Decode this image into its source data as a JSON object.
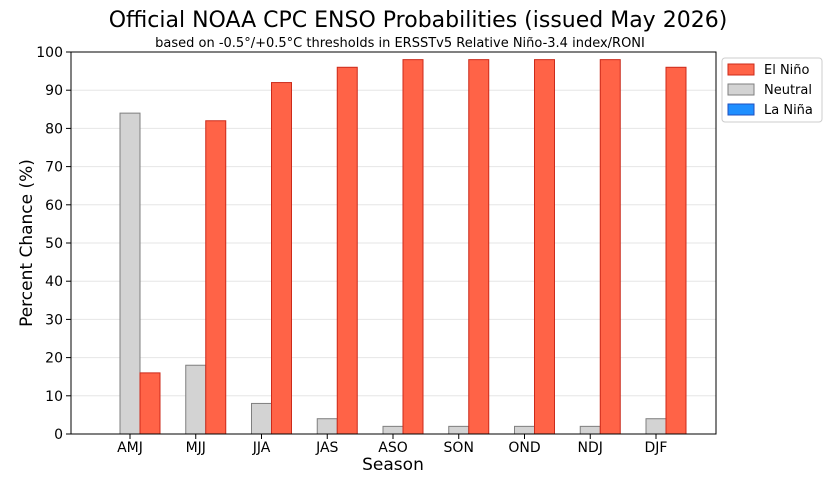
{
  "chart_data": {
    "type": "bar",
    "title": "Official NOAA CPC ENSO Probabilities (issued May 2026)",
    "subtitle": "based on -0.5°/+0.5°C thresholds in ERSSTv5 Relative Niño-3.4 index/RONI",
    "xlabel": "Season",
    "ylabel": "Percent Chance (%)",
    "ylim": [
      0,
      100
    ],
    "yticks": [
      0,
      10,
      20,
      30,
      40,
      50,
      60,
      70,
      80,
      90,
      100
    ],
    "grid": true,
    "legend_position": "upper-right-outside",
    "categories": [
      "AMJ",
      "MJJ",
      "JJA",
      "JAS",
      "ASO",
      "SON",
      "OND",
      "NDJ",
      "DJF"
    ],
    "series": [
      {
        "name": "La Niña",
        "color": "#1f8fff",
        "edge": "#1f4fbf",
        "values": [
          0,
          0,
          0,
          0,
          0,
          0,
          0,
          0,
          0
        ]
      },
      {
        "name": "Neutral",
        "color": "#d3d3d3",
        "edge": "#7f7f7f",
        "values": [
          84,
          18,
          8,
          4,
          2,
          2,
          2,
          2,
          4
        ]
      },
      {
        "name": "El Niño",
        "color": "#ff6347",
        "edge": "#cc2a1a",
        "values": [
          16,
          82,
          92,
          96,
          98,
          98,
          98,
          98,
          96
        ]
      }
    ],
    "legend_order": [
      "El Niño",
      "Neutral",
      "La Niña"
    ]
  }
}
